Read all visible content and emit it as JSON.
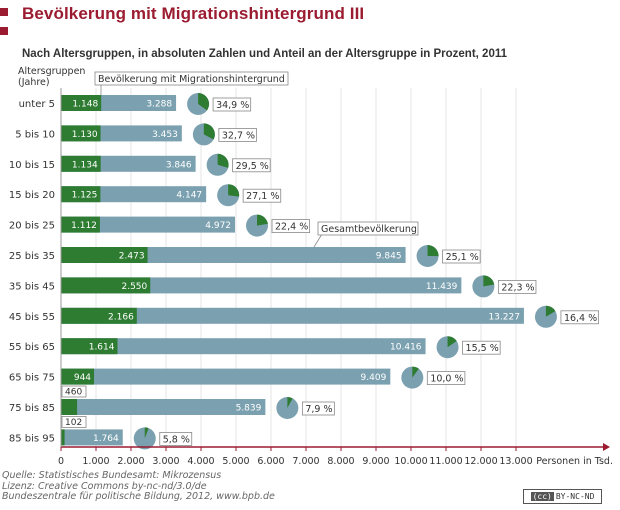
{
  "header": {
    "title": "Bevölkerung mit Migrationshintergrund III",
    "subtitle": "Nach Altersgruppen, in absoluten Zahlen und Anteil an der Altersgruppe  in Prozent, 2011"
  },
  "footer": {
    "source_line1": "Quelle: Statistisches Bundesamt: Mikrozensus",
    "source_line2": "Lizenz: Creative Commons  by-nc-nd/3.0/de",
    "source_line3": "Bundeszentrale für politische Bildung, 2012, www.bpb.de",
    "license_badge_cc": "(cc)",
    "license_badge_text": "BY-NC-ND"
  },
  "colors": {
    "migration": "#2e7b32",
    "total": "#7ba1b0",
    "title": "#9b1b30",
    "axis": "#9b1b30"
  },
  "chart_data": {
    "type": "bar",
    "ylabel": "Altersgruppen\n(Jahre)",
    "ylabel_line1": "Altersgruppen",
    "ylabel_line2": "(Jahre)",
    "xlabel": "Personen in Tsd.",
    "xlim": [
      0,
      15500
    ],
    "xticks": [
      0,
      1000,
      2000,
      3000,
      4000,
      5000,
      6000,
      7000,
      8000,
      9000,
      10000,
      11000,
      12000,
      13000
    ],
    "xtick_labels": [
      "0",
      "1.000",
      "2.000",
      "3.000",
      "4.000",
      "5.000",
      "6.000",
      "7.000",
      "8.000",
      "9.000",
      "10.000",
      "11.000",
      "12.000",
      "13.000"
    ],
    "callout_migration": "Bevölkerung mit Migrationshintergrund",
    "callout_total": "Gesamtbevölkerung",
    "categories": [
      "unter 5",
      "5 bis 10",
      "10 bis 15",
      "15 bis 20",
      "20 bis 25",
      "25 bis 35",
      "35 bis 45",
      "45 bis 55",
      "55 bis 65",
      "65 bis 75",
      "75 bis 85",
      "85 bis 95"
    ],
    "series": [
      {
        "name": "Bevölkerung mit Migrationshintergrund",
        "values": [
          1148,
          1130,
          1134,
          1125,
          1112,
          2473,
          2550,
          2166,
          1614,
          944,
          460,
          102
        ],
        "labels": [
          "1.148",
          "1.130",
          "1.134",
          "1.125",
          "1.112",
          "2.473",
          "2.550",
          "2.166",
          "1.614",
          "944",
          "460",
          "102"
        ]
      },
      {
        "name": "Gesamtbevölkerung",
        "values": [
          3288,
          3453,
          3846,
          4147,
          4972,
          9845,
          11439,
          13227,
          10416,
          9409,
          5839,
          1764
        ],
        "labels": [
          "3.288",
          "3.453",
          "3.846",
          "4.147",
          "4.972",
          "9.845",
          "11.439",
          "13.227",
          "10.416",
          "9.409",
          "5.839",
          "1.764"
        ]
      }
    ],
    "shares": [
      34.9,
      32.7,
      29.5,
      27.1,
      22.4,
      25.1,
      22.3,
      16.4,
      15.5,
      10.0,
      7.9,
      5.8
    ],
    "share_labels": [
      "34,9 %",
      "32,7 %",
      "29,5 %",
      "27,1 %",
      "22,4 %",
      "25,1 %",
      "22,3 %",
      "16,4 %",
      "15,5 %",
      "10,0 %",
      "7,9 %",
      "5,8 %"
    ]
  }
}
